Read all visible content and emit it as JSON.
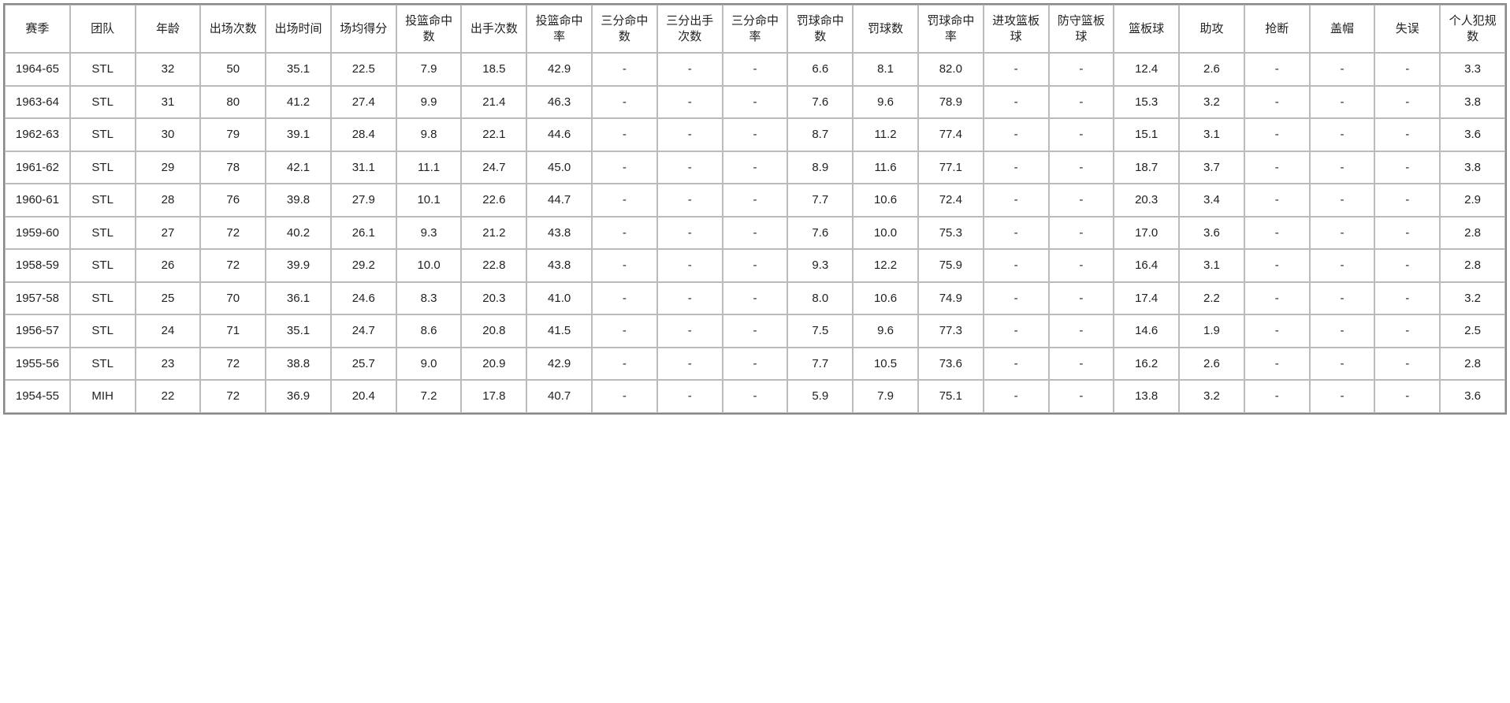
{
  "table": {
    "columns": [
      "赛季",
      "团队",
      "年龄",
      "出场次数",
      "出场时间",
      "场均得分",
      "投篮命中数",
      "出手次数",
      "投篮命中率",
      "三分命中数",
      "三分出手次数",
      "三分命中率",
      "罚球命中数",
      "罚球数",
      "罚球命中率",
      "进攻篮板球",
      "防守篮板球",
      "篮板球",
      "助攻",
      "抢断",
      "盖帽",
      "失误",
      "个人犯规数"
    ],
    "rows": [
      [
        "1964-65",
        "STL",
        "32",
        "50",
        "35.1",
        "22.5",
        "7.9",
        "18.5",
        "42.9",
        "-",
        "-",
        "-",
        "6.6",
        "8.1",
        "82.0",
        "-",
        "-",
        "12.4",
        "2.6",
        "-",
        "-",
        "-",
        "3.3"
      ],
      [
        "1963-64",
        "STL",
        "31",
        "80",
        "41.2",
        "27.4",
        "9.9",
        "21.4",
        "46.3",
        "-",
        "-",
        "-",
        "7.6",
        "9.6",
        "78.9",
        "-",
        "-",
        "15.3",
        "3.2",
        "-",
        "-",
        "-",
        "3.8"
      ],
      [
        "1962-63",
        "STL",
        "30",
        "79",
        "39.1",
        "28.4",
        "9.8",
        "22.1",
        "44.6",
        "-",
        "-",
        "-",
        "8.7",
        "11.2",
        "77.4",
        "-",
        "-",
        "15.1",
        "3.1",
        "-",
        "-",
        "-",
        "3.6"
      ],
      [
        "1961-62",
        "STL",
        "29",
        "78",
        "42.1",
        "31.1",
        "11.1",
        "24.7",
        "45.0",
        "-",
        "-",
        "-",
        "8.9",
        "11.6",
        "77.1",
        "-",
        "-",
        "18.7",
        "3.7",
        "-",
        "-",
        "-",
        "3.8"
      ],
      [
        "1960-61",
        "STL",
        "28",
        "76",
        "39.8",
        "27.9",
        "10.1",
        "22.6",
        "44.7",
        "-",
        "-",
        "-",
        "7.7",
        "10.6",
        "72.4",
        "-",
        "-",
        "20.3",
        "3.4",
        "-",
        "-",
        "-",
        "2.9"
      ],
      [
        "1959-60",
        "STL",
        "27",
        "72",
        "40.2",
        "26.1",
        "9.3",
        "21.2",
        "43.8",
        "-",
        "-",
        "-",
        "7.6",
        "10.0",
        "75.3",
        "-",
        "-",
        "17.0",
        "3.6",
        "-",
        "-",
        "-",
        "2.8"
      ],
      [
        "1958-59",
        "STL",
        "26",
        "72",
        "39.9",
        "29.2",
        "10.0",
        "22.8",
        "43.8",
        "-",
        "-",
        "-",
        "9.3",
        "12.2",
        "75.9",
        "-",
        "-",
        "16.4",
        "3.1",
        "-",
        "-",
        "-",
        "2.8"
      ],
      [
        "1957-58",
        "STL",
        "25",
        "70",
        "36.1",
        "24.6",
        "8.3",
        "20.3",
        "41.0",
        "-",
        "-",
        "-",
        "8.0",
        "10.6",
        "74.9",
        "-",
        "-",
        "17.4",
        "2.2",
        "-",
        "-",
        "-",
        "3.2"
      ],
      [
        "1956-57",
        "STL",
        "24",
        "71",
        "35.1",
        "24.7",
        "8.6",
        "20.8",
        "41.5",
        "-",
        "-",
        "-",
        "7.5",
        "9.6",
        "77.3",
        "-",
        "-",
        "14.6",
        "1.9",
        "-",
        "-",
        "-",
        "2.5"
      ],
      [
        "1955-56",
        "STL",
        "23",
        "72",
        "38.8",
        "25.7",
        "9.0",
        "20.9",
        "42.9",
        "-",
        "-",
        "-",
        "7.7",
        "10.5",
        "73.6",
        "-",
        "-",
        "16.2",
        "2.6",
        "-",
        "-",
        "-",
        "2.8"
      ],
      [
        "1954-55",
        "MIH",
        "22",
        "72",
        "36.9",
        "20.4",
        "7.2",
        "17.8",
        "40.7",
        "-",
        "-",
        "-",
        "5.9",
        "7.9",
        "75.1",
        "-",
        "-",
        "13.8",
        "3.2",
        "-",
        "-",
        "-",
        "3.6"
      ]
    ]
  }
}
